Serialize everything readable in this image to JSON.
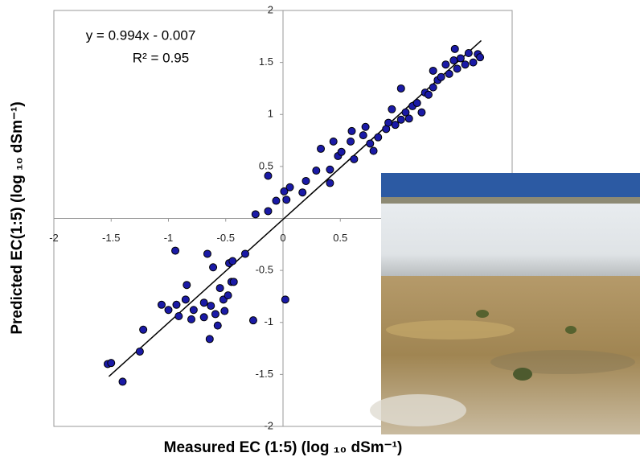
{
  "chart_data": {
    "type": "scatter",
    "x_label": "Measured EC (1:5) (log ₁₀ dSm⁻¹)",
    "y_label": "Predicted EC(1:5)  (log ₁₀ dSm⁻¹)",
    "annotations": [
      "y = 0.994x - 0.007",
      "R² = 0.95"
    ],
    "xlim": [
      -2,
      2
    ],
    "ylim": [
      -2,
      2
    ],
    "xticks": [
      -2,
      -1.5,
      -1,
      -0.5,
      0,
      0.5
    ],
    "yticks": [
      -2,
      -1.5,
      -1,
      -0.5,
      0.5,
      1,
      1.5,
      2
    ],
    "color": "#1a1aa6",
    "trendline": {
      "x": [
        -1.52,
        1.73
      ],
      "y": [
        -1.52,
        1.71
      ]
    },
    "x": [
      -1.53,
      -1.5,
      -1.4,
      -1.22,
      -1.25,
      -0.94,
      -1.06,
      -1.0,
      -0.93,
      -0.91,
      -0.84,
      -0.85,
      -0.78,
      -0.8,
      -0.69,
      -0.69,
      -0.66,
      -0.64,
      -0.61,
      -0.63,
      -0.59,
      -0.57,
      -0.55,
      -0.52,
      -0.51,
      -0.48,
      -0.47,
      -0.45,
      -0.44,
      -0.43,
      -0.33,
      -0.26,
      -0.24,
      -0.13,
      -0.06,
      0.01,
      0.03,
      0.02,
      -0.13,
      0.2,
      0.17,
      0.33,
      0.29,
      0.41,
      0.41,
      0.48,
      0.51,
      0.59,
      0.6,
      0.7,
      0.72,
      0.79,
      0.83,
      0.9,
      0.92,
      0.98,
      1.03,
      1.07,
      1.1,
      1.13,
      1.17,
      1.21,
      1.24,
      1.27,
      1.31,
      1.35,
      1.38,
      1.42,
      1.45,
      1.49,
      1.52,
      1.55,
      1.59,
      1.62,
      1.66,
      1.7,
      1.72,
      1.5,
      1.31,
      1.03,
      0.95,
      0.76,
      0.62,
      0.44,
      0.06
    ],
    "y": [
      -1.4,
      -1.39,
      -1.57,
      -1.07,
      -1.28,
      -0.31,
      -0.83,
      -0.88,
      -0.83,
      -0.94,
      -0.64,
      -0.78,
      -0.88,
      -0.97,
      -0.81,
      -0.95,
      -0.34,
      -1.16,
      -0.47,
      -0.84,
      -0.92,
      -1.03,
      -0.67,
      -0.78,
      -0.89,
      -0.74,
      -0.43,
      -0.61,
      -0.41,
      -0.61,
      -0.34,
      -0.98,
      0.04,
      0.07,
      0.17,
      0.26,
      0.18,
      -0.78,
      0.41,
      0.36,
      0.25,
      0.67,
      0.46,
      0.34,
      0.47,
      0.6,
      0.64,
      0.74,
      0.84,
      0.8,
      0.88,
      0.65,
      0.78,
      0.86,
      0.92,
      0.9,
      0.95,
      1.02,
      0.96,
      1.08,
      1.11,
      1.02,
      1.21,
      1.19,
      1.26,
      1.33,
      1.36,
      1.48,
      1.39,
      1.52,
      1.44,
      1.54,
      1.48,
      1.59,
      1.5,
      1.58,
      1.55,
      1.63,
      1.42,
      1.25,
      1.05,
      0.72,
      0.57,
      0.74,
      0.3
    ]
  }
}
